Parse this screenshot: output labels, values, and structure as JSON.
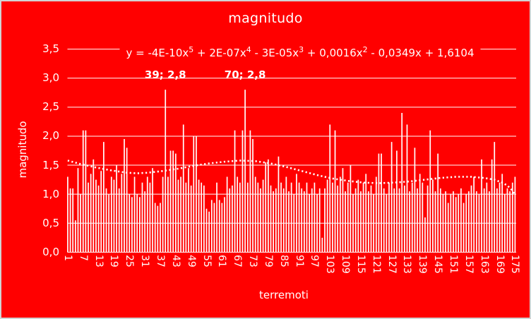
{
  "window": {
    "background_color": "#ff0000",
    "foreground_color": "#ffffff",
    "border_color": "#d2d2d2"
  },
  "chart_data": {
    "type": "bar",
    "title": "magnitudo",
    "x_title": "terremoti",
    "y_title": "magnitudo",
    "grid": "horizontal",
    "legend": "none",
    "y_min": 0,
    "y_max": 3.5,
    "y_step": 0.5,
    "y_tick_labels": [
      "0,0",
      "0,5",
      "1,0",
      "1,5",
      "2,0",
      "2,5",
      "3,0",
      "3,5"
    ],
    "x_start": 1,
    "x_end": 175,
    "x_tick_labels": [
      1,
      7,
      13,
      19,
      25,
      31,
      37,
      43,
      49,
      55,
      61,
      67,
      73,
      79,
      85,
      91,
      97,
      103,
      109,
      115,
      121,
      127,
      133,
      139,
      145,
      151,
      157,
      163,
      169,
      175
    ],
    "series": [
      {
        "name": "magnitudo",
        "values": [
          1.3,
          1.1,
          1.1,
          0.55,
          1.45,
          1.0,
          2.1,
          2.1,
          1.2,
          1.35,
          1.6,
          1.25,
          1.15,
          1.4,
          1.9,
          1.1,
          1.0,
          1.3,
          1.25,
          1.5,
          1.1,
          1.35,
          1.95,
          1.8,
          1.0,
          0.95,
          1.3,
          1.0,
          0.95,
          1.2,
          1.05,
          1.3,
          1.2,
          1.45,
          0.85,
          0.8,
          0.85,
          1.3,
          2.8,
          1.3,
          1.75,
          1.75,
          1.7,
          1.25,
          1.3,
          2.2,
          1.2,
          1.45,
          1.15,
          2.0,
          2.0,
          1.25,
          1.2,
          1.15,
          0.75,
          0.7,
          0.9,
          0.85,
          1.2,
          0.9,
          0.85,
          0.95,
          1.3,
          1.1,
          1.15,
          2.1,
          1.3,
          1.2,
          2.1,
          2.8,
          1.2,
          2.1,
          1.95,
          1.3,
          1.2,
          1.1,
          1.25,
          1.55,
          1.6,
          1.15,
          1.05,
          1.1,
          1.65,
          1.2,
          1.1,
          1.3,
          1.05,
          1.2,
          1.0,
          1.35,
          1.2,
          1.1,
          1.05,
          1.2,
          1.0,
          1.1,
          1.2,
          1.0,
          1.1,
          0.25,
          1.1,
          1.25,
          2.2,
          1.2,
          2.1,
          1.15,
          1.3,
          1.45,
          1.05,
          1.2,
          1.5,
          1.0,
          1.1,
          1.25,
          1.05,
          1.2,
          1.35,
          1.05,
          1.15,
          1.0,
          1.3,
          1.7,
          1.7,
          1.1,
          1.0,
          1.2,
          1.9,
          1.1,
          1.75,
          1.1,
          2.4,
          1.15,
          2.2,
          1.05,
          1.2,
          1.8,
          1.1,
          1.35,
          1.2,
          0.6,
          1.15,
          2.1,
          1.25,
          1.05,
          1.7,
          1.1,
          1.0,
          1.05,
          0.85,
          1.0,
          1.05,
          0.95,
          1.0,
          1.1,
          0.85,
          1.0,
          1.05,
          1.15,
          1.3,
          1.05,
          1.0,
          1.6,
          1.1,
          1.2,
          1.05,
          1.6,
          1.9,
          1.1,
          1.2,
          1.35,
          1.0,
          1.1,
          1.05,
          1.2,
          1.3
        ]
      }
    ],
    "annotations": [
      {
        "x": 39,
        "y": 2.8,
        "text": "39; 2,8"
      },
      {
        "x": 70,
        "y": 2.8,
        "text": "70; 2,8"
      }
    ],
    "trendline": {
      "style": "dotted",
      "equation_tokens": [
        {
          "t": "y = -4E-10x"
        },
        {
          "sup": "5"
        },
        {
          "t": " + 2E-07x"
        },
        {
          "sup": "4"
        },
        {
          "t": " - 3E-05x"
        },
        {
          "sup": "3"
        },
        {
          "t": " + 0,0016x"
        },
        {
          "sup": "2"
        },
        {
          "t": " - 0,0349x + 1,6104"
        }
      ],
      "points": [
        [
          1,
          1.58
        ],
        [
          6,
          1.52
        ],
        [
          12,
          1.46
        ],
        [
          18,
          1.41
        ],
        [
          24,
          1.37
        ],
        [
          28,
          1.36
        ],
        [
          32,
          1.37
        ],
        [
          38,
          1.4
        ],
        [
          44,
          1.44
        ],
        [
          50,
          1.49
        ],
        [
          56,
          1.53
        ],
        [
          62,
          1.56
        ],
        [
          68,
          1.58
        ],
        [
          74,
          1.57
        ],
        [
          80,
          1.53
        ],
        [
          86,
          1.47
        ],
        [
          92,
          1.4
        ],
        [
          98,
          1.33
        ],
        [
          104,
          1.27
        ],
        [
          110,
          1.23
        ],
        [
          116,
          1.2
        ],
        [
          122,
          1.19
        ],
        [
          128,
          1.2
        ],
        [
          134,
          1.22
        ],
        [
          140,
          1.25
        ],
        [
          146,
          1.28
        ],
        [
          152,
          1.3
        ],
        [
          158,
          1.3
        ],
        [
          163,
          1.28
        ],
        [
          167,
          1.25
        ],
        [
          170,
          1.2
        ],
        [
          172,
          1.15
        ],
        [
          174,
          1.06
        ],
        [
          175,
          0.98
        ]
      ]
    }
  }
}
